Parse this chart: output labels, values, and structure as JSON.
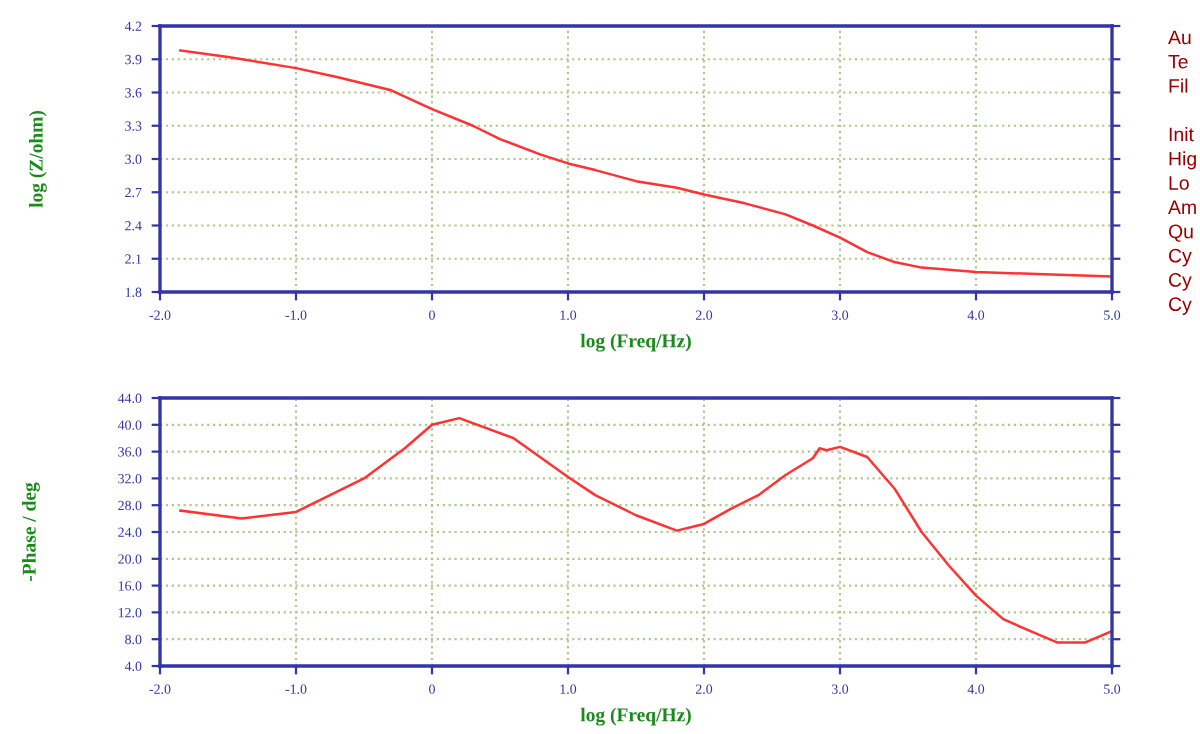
{
  "chart_data": [
    {
      "type": "line",
      "xlabel": "log (Freq/Hz)",
      "ylabel": "log (Z/ohm)",
      "grid": true,
      "x": [
        -1.85,
        -1.5,
        -1.0,
        -0.7,
        -0.3,
        0,
        0.3,
        0.5,
        0.8,
        1.0,
        1.2,
        1.5,
        1.8,
        2.0,
        2.3,
        2.6,
        2.8,
        3.0,
        3.2,
        3.4,
        3.6,
        4.0,
        4.5,
        5.0
      ],
      "series": [
        {
          "color": "#ff3333",
          "values": [
            3.98,
            3.92,
            3.82,
            3.74,
            3.62,
            3.45,
            3.3,
            3.18,
            3.04,
            2.96,
            2.9,
            2.8,
            2.74,
            2.68,
            2.6,
            2.5,
            2.4,
            2.29,
            2.16,
            2.07,
            2.02,
            1.98,
            1.96,
            1.94
          ]
        }
      ],
      "xlim": [
        -2,
        5
      ],
      "xticks": [
        {
          "value": -2,
          "label": "-2.0"
        },
        {
          "value": -1,
          "label": "-1.0"
        },
        0,
        {
          "value": 1,
          "label": "1.0"
        },
        {
          "value": 2,
          "label": "2.0"
        },
        {
          "value": 3,
          "label": "3.0"
        },
        {
          "value": 4,
          "label": "4.0"
        },
        {
          "value": 5,
          "label": "5.0"
        }
      ],
      "ylim": [
        1.8,
        4.2
      ],
      "yticks": [
        1.8,
        2.1,
        2.4,
        2.7,
        {
          "value": 3,
          "label": "3.0"
        },
        3.3,
        3.6,
        3.9,
        4.2
      ]
    },
    {
      "type": "line",
      "xlabel": "log (Freq/Hz)",
      "ylabel": "-Phase / deg",
      "grid": true,
      "x": [
        -1.85,
        -1.4,
        -1.0,
        -0.5,
        -0.2,
        0,
        0.2,
        0.6,
        1.0,
        1.2,
        1.5,
        1.8,
        2.0,
        2.2,
        2.4,
        2.6,
        2.8,
        2.85,
        2.9,
        3.0,
        3.2,
        3.4,
        3.6,
        3.8,
        4.0,
        4.2,
        4.4,
        4.6,
        4.8,
        5.0
      ],
      "series": [
        {
          "color": "#ff3333",
          "values": [
            27.2,
            26.0,
            27.0,
            32.0,
            36.5,
            40.0,
            41.0,
            38.0,
            32.2,
            29.5,
            26.5,
            24.2,
            25.2,
            27.5,
            29.5,
            32.5,
            35.0,
            36.5,
            36.2,
            36.7,
            35.2,
            30.5,
            24.0,
            19.0,
            14.5,
            11.0,
            9.2,
            7.5,
            7.5,
            9.2
          ]
        }
      ],
      "xlim": [
        -2,
        5
      ],
      "xticks": [
        {
          "value": -2,
          "label": "-2.0"
        },
        {
          "value": -1,
          "label": "-1.0"
        },
        0,
        {
          "value": 1,
          "label": "1.0"
        },
        {
          "value": 2,
          "label": "2.0"
        },
        {
          "value": 3,
          "label": "3.0"
        },
        {
          "value": 4,
          "label": "4.0"
        },
        {
          "value": 5,
          "label": "5.0"
        }
      ],
      "ylim": [
        4,
        44
      ],
      "yticks": [
        {
          "value": 4,
          "label": "4.0"
        },
        {
          "value": 8,
          "label": "8.0"
        },
        {
          "value": 12,
          "label": "12.0"
        },
        {
          "value": 16,
          "label": "16.0"
        },
        {
          "value": 20,
          "label": "20.0"
        },
        {
          "value": 24,
          "label": "24.0"
        },
        {
          "value": 28,
          "label": "28.0"
        },
        {
          "value": 32,
          "label": "32.0"
        },
        {
          "value": 36,
          "label": "36.0"
        },
        {
          "value": 40,
          "label": "40.0"
        },
        {
          "value": 44,
          "label": "44.0"
        }
      ]
    },
    {
      "type": "other",
      "annotations": [
        "Au",
        "Te",
        "Fil",
        "Init",
        "Hig",
        "Lo",
        "Am",
        "Qu",
        "Cy",
        "Cy",
        "Cy"
      ]
    }
  ]
}
